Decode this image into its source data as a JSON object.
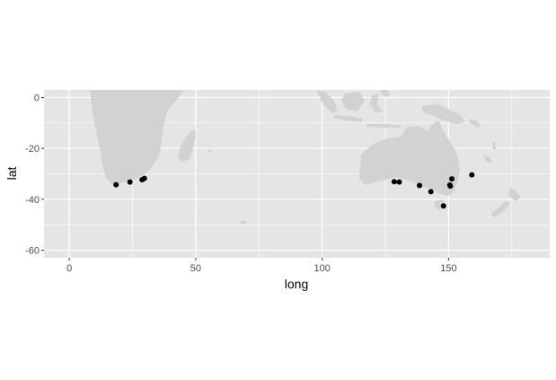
{
  "chart_data": {
    "type": "scatter",
    "xlabel": "long",
    "ylabel": "lat",
    "xlim": [
      -10,
      190
    ],
    "ylim": [
      -63,
      3
    ],
    "x_ticks": [
      0,
      50,
      100,
      150
    ],
    "y_ticks": [
      0,
      -20,
      -40,
      -60
    ],
    "x_tick_labels": [
      "0",
      "50",
      "100",
      "150"
    ],
    "y_tick_labels": [
      "0",
      "-20",
      "-40",
      "-60"
    ],
    "grid": true,
    "legend": "none",
    "colors": {
      "panel": "#e5e5e5",
      "grid": "#ffffff",
      "land": "#d2d2d2",
      "points": "#000000"
    },
    "points": [
      {
        "x": 18.5,
        "y": -34.3
      },
      {
        "x": 24.0,
        "y": -33.2
      },
      {
        "x": 28.8,
        "y": -32.3
      },
      {
        "x": 29.7,
        "y": -31.8
      },
      {
        "x": 128.5,
        "y": -33.1
      },
      {
        "x": 130.5,
        "y": -33.2
      },
      {
        "x": 138.5,
        "y": -34.6
      },
      {
        "x": 143.0,
        "y": -37.0
      },
      {
        "x": 148.0,
        "y": -42.6
      },
      {
        "x": 150.5,
        "y": -34.4
      },
      {
        "x": 150.7,
        "y": -34.8
      },
      {
        "x": 151.3,
        "y": -32.0
      },
      {
        "x": 159.2,
        "y": -30.4
      }
    ]
  }
}
